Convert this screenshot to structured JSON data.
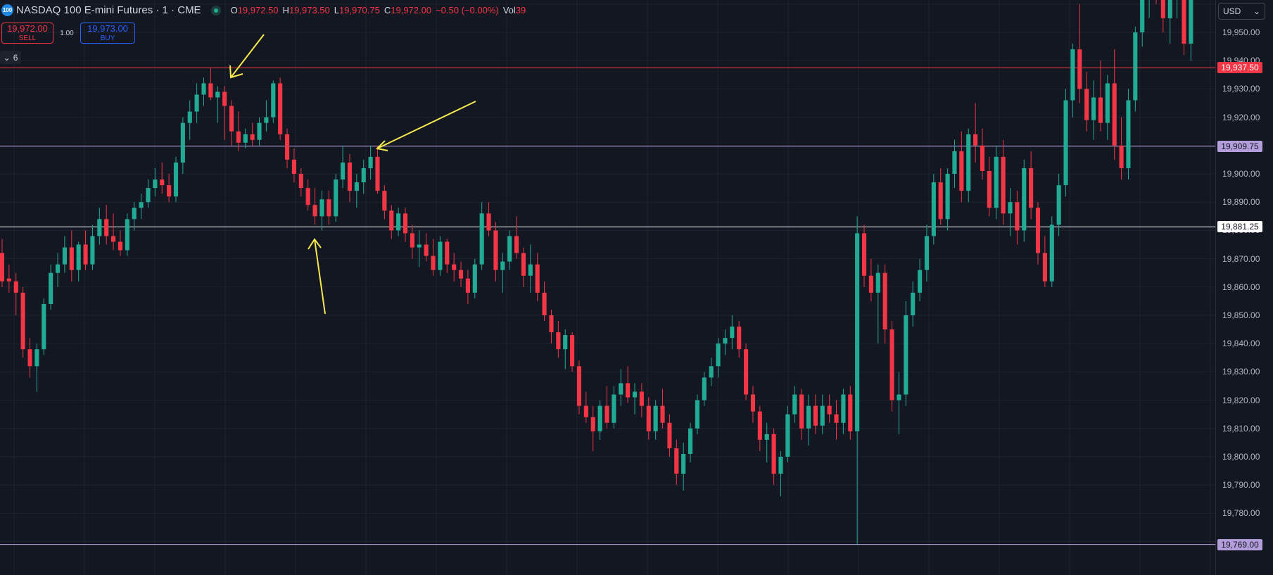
{
  "header": {
    "symbol_logo": "100",
    "title": "NASDAQ 100 E-mini Futures · 1 · CME",
    "ohlc": [
      {
        "key": "O",
        "value": "19,972.50"
      },
      {
        "key": "H",
        "value": "19,973.50"
      },
      {
        "key": "L",
        "value": "19,970.75"
      },
      {
        "key": "C",
        "value": "19,972.00"
      },
      {
        "key": "",
        "value": "−0.50 (−0.00%)"
      },
      {
        "key": "Vol",
        "value": "39"
      }
    ]
  },
  "trade": {
    "sell_price": "19,972.00",
    "sell_label": "SELL",
    "spread": "1.00",
    "buy_price": "19,973.00",
    "buy_label": "BUY"
  },
  "indicators_collapse": {
    "count": "6"
  },
  "currency": {
    "value": "USD"
  },
  "colors": {
    "bg": "#131722",
    "up": "#22ab94",
    "down": "#f23645",
    "arrow": "#f5e94d",
    "purple": "#b39ddb"
  },
  "price_axis": {
    "ticks": [
      "19,950.00",
      "19,940.00",
      "19,930.00",
      "19,920.00",
      "19,910.00",
      "19,900.00",
      "19,890.00",
      "19,880.00",
      "19,870.00",
      "19,860.00",
      "19,850.00",
      "19,840.00",
      "19,830.00",
      "19,820.00",
      "19,810.00",
      "19,800.00",
      "19,790.00",
      "19,780.00"
    ],
    "labels": [
      {
        "name": "price-label-19937",
        "text": "19,937.50",
        "price": 19937.5,
        "bg": "#f23645",
        "fg": "#ffffff",
        "line": "#f23645"
      },
      {
        "name": "price-label-19909",
        "text": "19,909.75",
        "price": 19909.75,
        "bg": "#b39ddb",
        "fg": "#131722",
        "line": "#b39ddb"
      },
      {
        "name": "price-label-19881",
        "text": "19,881.25",
        "price": 19881.25,
        "bg": "#ffffff",
        "fg": "#131722",
        "line": "#ffffff"
      },
      {
        "name": "price-label-19769",
        "text": "19,769.00",
        "price": 19769,
        "bg": "#b39ddb",
        "fg": "#131722",
        "line": "#b39ddb"
      }
    ]
  },
  "chart_data": {
    "type": "candlestick",
    "ylim": [
      19761,
      19975
    ],
    "candles": [
      [
        19872,
        19877,
        19860,
        19862
      ],
      [
        19863,
        19868,
        19858,
        19862
      ],
      [
        19862,
        19865,
        19850,
        19858
      ],
      [
        19858,
        19860,
        19835,
        19838
      ],
      [
        19838,
        19842,
        19828,
        19832
      ],
      [
        19832,
        19840,
        19823,
        19838
      ],
      [
        19838,
        19856,
        19836,
        19854
      ],
      [
        19854,
        19868,
        19852,
        19865
      ],
      [
        19865,
        19872,
        19860,
        19868
      ],
      [
        19868,
        19878,
        19865,
        19874
      ],
      [
        19874,
        19880,
        19862,
        19866
      ],
      [
        19866,
        19876,
        19862,
        19875
      ],
      [
        19875,
        19880,
        19866,
        19868
      ],
      [
        19868,
        19882,
        19866,
        19878
      ],
      [
        19878,
        19888,
        19875,
        19884
      ],
      [
        19884,
        19889,
        19875,
        19878
      ],
      [
        19878,
        19886,
        19873,
        19876
      ],
      [
        19876,
        19880,
        19871,
        19873
      ],
      [
        19873,
        19886,
        19871,
        19884
      ],
      [
        19884,
        19890,
        19880,
        19888
      ],
      [
        19888,
        19893,
        19884,
        19890
      ],
      [
        19890,
        19898,
        19888,
        19895
      ],
      [
        19895,
        19902,
        19892,
        19898
      ],
      [
        19898,
        19904,
        19893,
        19896
      ],
      [
        19896,
        19900,
        19890,
        19892
      ],
      [
        19892,
        19906,
        19890,
        19904
      ],
      [
        19904,
        19920,
        19900,
        19918
      ],
      [
        19918,
        19926,
        19912,
        19922
      ],
      [
        19922,
        19932,
        19918,
        19928
      ],
      [
        19928,
        19934,
        19924,
        19932
      ],
      [
        19932,
        19937.5,
        19926,
        19927
      ],
      [
        19927,
        19931,
        19918,
        19929
      ],
      [
        19929,
        19931,
        19912,
        19924
      ],
      [
        19924,
        19926,
        19910,
        19915
      ],
      [
        19915,
        19922,
        19908,
        19911
      ],
      [
        19911,
        19916,
        19909,
        19914
      ],
      [
        19914,
        19918,
        19910,
        19912
      ],
      [
        19912,
        19920,
        19910,
        19918
      ],
      [
        19918,
        19926,
        19915,
        19920
      ],
      [
        19920,
        19933,
        19918,
        19932
      ],
      [
        19932,
        19934,
        19912,
        19914
      ],
      [
        19914,
        19916,
        19902,
        19905
      ],
      [
        19905,
        19909,
        19897,
        19900
      ],
      [
        19900,
        19902,
        19892,
        19895
      ],
      [
        19895,
        19898,
        19887,
        19889
      ],
      [
        19889,
        19895,
        19882,
        19885
      ],
      [
        19885,
        19894,
        19880,
        19891
      ],
      [
        19891,
        19894,
        19882,
        19885
      ],
      [
        19885,
        19900,
        19883,
        19898
      ],
      [
        19898,
        19910,
        19895,
        19904
      ],
      [
        19904,
        19907,
        19890,
        19894
      ],
      [
        19894,
        19900,
        19888,
        19897
      ],
      [
        19897,
        19905,
        19893,
        19902
      ],
      [
        19902,
        19910,
        19898,
        19906
      ],
      [
        19906,
        19909.75,
        19893,
        19894
      ],
      [
        19894,
        19896,
        19884,
        19887
      ],
      [
        19887,
        19889,
        19877,
        19880
      ],
      [
        19880,
        19888,
        19878,
        19886
      ],
      [
        19886,
        19888,
        19876,
        19879
      ],
      [
        19879,
        19882,
        19870,
        19874
      ],
      [
        19874,
        19880,
        19867,
        19875
      ],
      [
        19875,
        19879,
        19869,
        19871
      ],
      [
        19871,
        19877,
        19864,
        19866
      ],
      [
        19866,
        19878,
        19864,
        19876
      ],
      [
        19876,
        19877,
        19865,
        19868
      ],
      [
        19868,
        19872,
        19862,
        19866
      ],
      [
        19866,
        19869,
        19860,
        19863
      ],
      [
        19863,
        19866,
        19854,
        19858
      ],
      [
        19858,
        19870,
        19856,
        19868
      ],
      [
        19868,
        19890,
        19866,
        19886
      ],
      [
        19886,
        19890,
        19878,
        19880
      ],
      [
        19880,
        19883,
        19862,
        19866
      ],
      [
        19866,
        19872,
        19858,
        19869
      ],
      [
        19869,
        19880,
        19866,
        19878
      ],
      [
        19878,
        19885,
        19870,
        19872
      ],
      [
        19872,
        19874,
        19860,
        19864
      ],
      [
        19864,
        19875,
        19858,
        19868
      ],
      [
        19868,
        19872,
        19855,
        19858
      ],
      [
        19858,
        19862,
        19848,
        19850
      ],
      [
        19850,
        19852,
        19840,
        19844
      ],
      [
        19844,
        19848,
        19835,
        19838
      ],
      [
        19838,
        19845,
        19831,
        19843
      ],
      [
        19843,
        19844,
        19830,
        19832
      ],
      [
        19832,
        19834,
        19815,
        19818
      ],
      [
        19818,
        19823,
        19812,
        19814
      ],
      [
        19814,
        19818,
        19802,
        19809
      ],
      [
        19809,
        19820,
        19806,
        19818
      ],
      [
        19818,
        19825,
        19810,
        19812
      ],
      [
        19812,
        19825,
        19810,
        19822
      ],
      [
        19822,
        19831,
        19818,
        19826
      ],
      [
        19826,
        19832,
        19819,
        19821
      ],
      [
        19821,
        19826,
        19815,
        19823
      ],
      [
        19823,
        19826,
        19814,
        19818
      ],
      [
        19818,
        19821,
        19806,
        19809
      ],
      [
        19809,
        19820,
        19806,
        19818
      ],
      [
        19818,
        19824,
        19810,
        19812
      ],
      [
        19812,
        19815,
        19800,
        19803
      ],
      [
        19803,
        19806,
        19790,
        19794
      ],
      [
        19794,
        19805,
        19788,
        19801
      ],
      [
        19801,
        19812,
        19798,
        19810
      ],
      [
        19810,
        19822,
        19808,
        19820
      ],
      [
        19820,
        19830,
        19818,
        19828
      ],
      [
        19828,
        19835,
        19825,
        19832
      ],
      [
        19832,
        19842,
        19828,
        19840
      ],
      [
        19840,
        19845,
        19836,
        19842
      ],
      [
        19842,
        19850,
        19838,
        19846
      ],
      [
        19846,
        19848,
        19835,
        19838
      ],
      [
        19838,
        19840,
        19820,
        19822
      ],
      [
        19822,
        19825,
        19812,
        19816
      ],
      [
        19816,
        19818,
        19802,
        19806
      ],
      [
        19806,
        19812,
        19798,
        19808
      ],
      [
        19808,
        19810,
        19790,
        19794
      ],
      [
        19794,
        19802,
        19786,
        19800
      ],
      [
        19800,
        19818,
        19798,
        19815
      ],
      [
        19815,
        19825,
        19812,
        19822
      ],
      [
        19822,
        19824,
        19806,
        19810
      ],
      [
        19810,
        19822,
        19804,
        19818
      ],
      [
        19818,
        19822,
        19808,
        19811
      ],
      [
        19811,
        19822,
        19808,
        19818
      ],
      [
        19818,
        19822,
        19812,
        19815
      ],
      [
        19815,
        19820,
        19806,
        19812
      ],
      [
        19812,
        19824,
        19808,
        19822
      ],
      [
        19822,
        19825,
        19806,
        19809
      ],
      [
        19809,
        19885,
        19769,
        19879
      ],
      [
        19879,
        19882,
        19860,
        19864
      ],
      [
        19864,
        19870,
        19855,
        19858
      ],
      [
        19858,
        19868,
        19840,
        19865
      ],
      [
        19865,
        19868,
        19840,
        19845
      ],
      [
        19845,
        19848,
        19816,
        19820
      ],
      [
        19820,
        19830,
        19808,
        19822
      ],
      [
        19822,
        19855,
        19818,
        19850
      ],
      [
        19850,
        19862,
        19846,
        19858
      ],
      [
        19858,
        19870,
        19855,
        19866
      ],
      [
        19866,
        19882,
        19862,
        19878
      ],
      [
        19878,
        19900,
        19875,
        19897
      ],
      [
        19897,
        19902,
        19882,
        19884
      ],
      [
        19884,
        19902,
        19880,
        19900
      ],
      [
        19900,
        19912,
        19895,
        19908
      ],
      [
        19908,
        19915,
        19890,
        19894
      ],
      [
        19894,
        19916,
        19890,
        19914
      ],
      [
        19914,
        19925,
        19904,
        19910
      ],
      [
        19910,
        19916,
        19898,
        19901
      ],
      [
        19901,
        19906,
        19885,
        19888
      ],
      [
        19888,
        19910,
        19884,
        19906
      ],
      [
        19906,
        19912,
        19882,
        19886
      ],
      [
        19886,
        19895,
        19878,
        19890
      ],
      [
        19890,
        19894,
        19875,
        19880
      ],
      [
        19880,
        19905,
        19876,
        19902
      ],
      [
        19902,
        19908,
        19884,
        19888
      ],
      [
        19888,
        19890,
        19868,
        19872
      ],
      [
        19872,
        19878,
        19860,
        19862
      ],
      [
        19862,
        19885,
        19860,
        19882
      ],
      [
        19882,
        19900,
        19878,
        19896
      ],
      [
        19896,
        19930,
        19892,
        19926
      ],
      [
        19926,
        19946,
        19920,
        19944
      ],
      [
        19944,
        19960,
        19925,
        19930
      ],
      [
        19930,
        19936,
        19915,
        19919
      ],
      [
        19919,
        19933,
        19912,
        19927
      ],
      [
        19927,
        19940,
        19915,
        19918
      ],
      [
        19918,
        19935,
        19912,
        19932
      ],
      [
        19932,
        19944,
        19905,
        19910
      ],
      [
        19910,
        19920,
        19898,
        19902
      ],
      [
        19902,
        19930,
        19898,
        19926
      ],
      [
        19926,
        19952,
        19922,
        19950
      ],
      [
        19950,
        19970,
        19945,
        19962
      ],
      [
        19962,
        19975,
        19955,
        19972
      ],
      [
        19972,
        19975,
        19960,
        19966
      ],
      [
        19966,
        19972,
        19950,
        19955
      ],
      [
        19955,
        19970,
        19946,
        19968
      ],
      [
        19968,
        19975,
        19955,
        19970
      ],
      [
        19970,
        19975,
        19942,
        19946
      ],
      [
        19946,
        19975,
        19940,
        19970
      ],
      [
        19970,
        19975,
        19962,
        19972
      ],
      [
        19972,
        19975,
        19962,
        19970
      ],
      [
        19970,
        19975,
        19962,
        19972
      ]
    ]
  }
}
